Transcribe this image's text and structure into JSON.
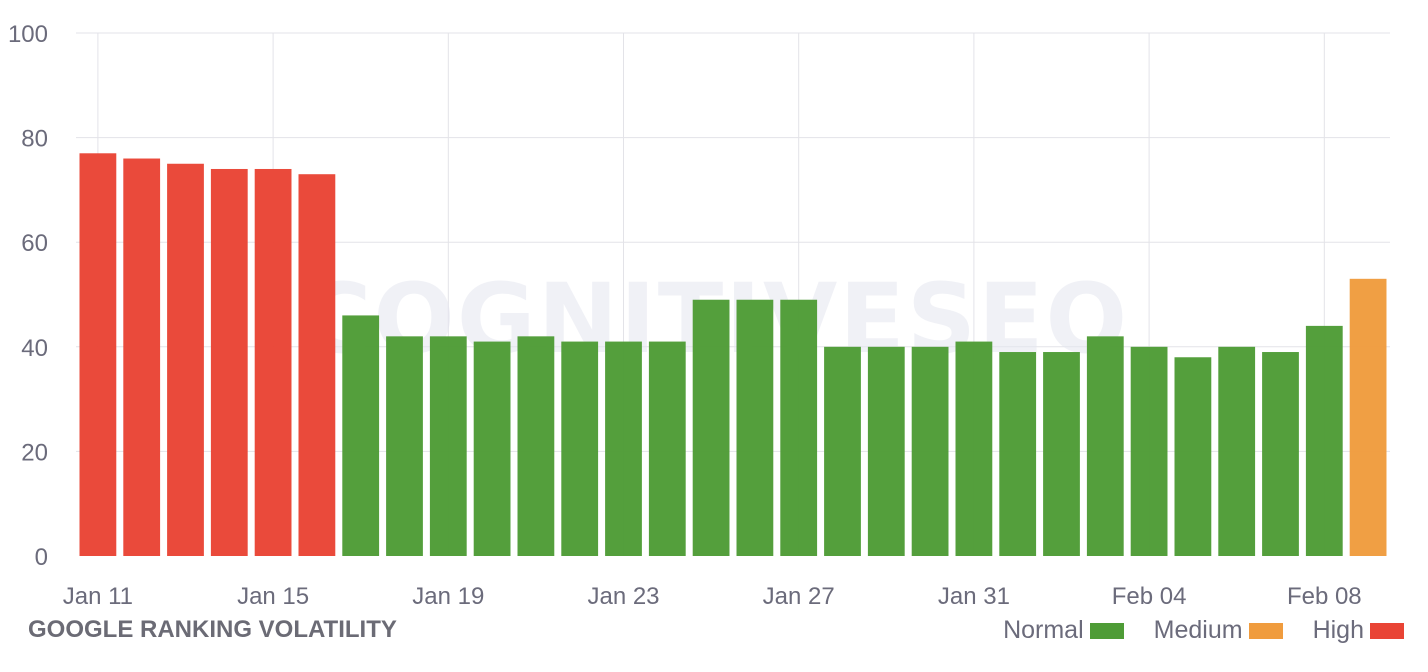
{
  "chart_data": {
    "type": "bar",
    "title": "GOOGLE RANKING VOLATILITY",
    "watermark": "COGNITIVESEO",
    "ylim": [
      0,
      100
    ],
    "yticks": [
      0,
      20,
      40,
      60,
      80,
      100
    ],
    "grid": true,
    "categories": [
      "Jan 11",
      "Jan 12",
      "Jan 13",
      "Jan 14",
      "Jan 15",
      "Jan 16",
      "Jan 17",
      "Jan 18",
      "Jan 19",
      "Jan 20",
      "Jan 21",
      "Jan 22",
      "Jan 23",
      "Jan 24",
      "Jan 25",
      "Jan 26",
      "Jan 27",
      "Jan 28",
      "Jan 29",
      "Jan 30",
      "Jan 31",
      "Feb 01",
      "Feb 02",
      "Feb 03",
      "Feb 04",
      "Feb 05",
      "Feb 06",
      "Feb 07",
      "Feb 08",
      "Feb 09"
    ],
    "xtick_labels": [
      {
        "index": 0,
        "label": "Jan 11"
      },
      {
        "index": 4,
        "label": "Jan 15"
      },
      {
        "index": 8,
        "label": "Jan 19"
      },
      {
        "index": 12,
        "label": "Jan 23"
      },
      {
        "index": 16,
        "label": "Jan 27"
      },
      {
        "index": 20,
        "label": "Jan 31"
      },
      {
        "index": 24,
        "label": "Feb 04"
      },
      {
        "index": 28,
        "label": "Feb 08"
      }
    ],
    "values": [
      77,
      76,
      75,
      74,
      74,
      73,
      46,
      42,
      42,
      41,
      42,
      41,
      41,
      41,
      49,
      49,
      49,
      40,
      40,
      40,
      41,
      39,
      39,
      42,
      40,
      38,
      40,
      39,
      44,
      53
    ],
    "levels": [
      "High",
      "High",
      "High",
      "High",
      "High",
      "High",
      "Normal",
      "Normal",
      "Normal",
      "Normal",
      "Normal",
      "Normal",
      "Normal",
      "Normal",
      "Normal",
      "Normal",
      "Normal",
      "Normal",
      "Normal",
      "Normal",
      "Normal",
      "Normal",
      "Normal",
      "Normal",
      "Normal",
      "Normal",
      "Normal",
      "Normal",
      "Normal",
      "Medium"
    ],
    "legend": [
      {
        "name": "Normal",
        "color": "#4e9c36"
      },
      {
        "name": "Medium",
        "color": "#f09c3e"
      },
      {
        "name": "High",
        "color": "#e94435"
      }
    ],
    "legend_position": "bottom-right"
  },
  "colors": {
    "grid": "#e3e3e8",
    "tick_text": "#6b6b7b"
  }
}
